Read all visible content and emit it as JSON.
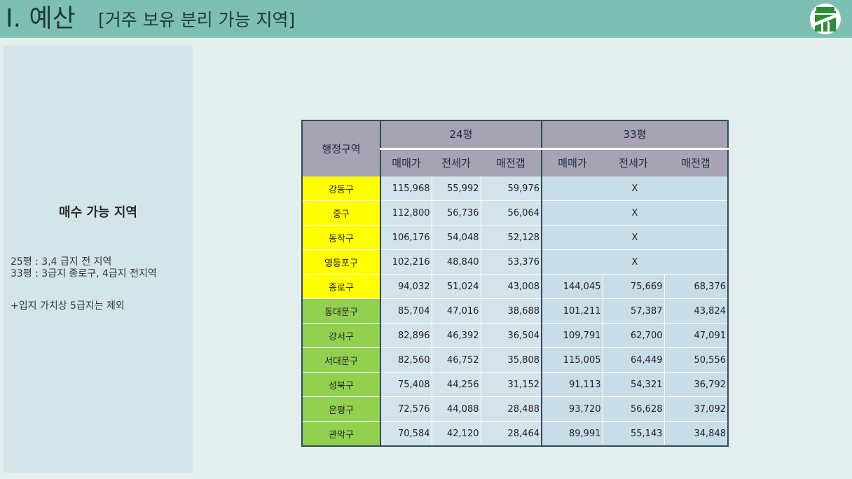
{
  "header": {
    "title_main": "I. 예산",
    "title_sub": "[거주 보유 분리 가능 지역]"
  },
  "side_panel": {
    "heading": "매수 가능 지역",
    "lines": [
      "25평 : 3,4 급지 전 지역",
      "33평 : 3급지 종로구, 4급지 전지역",
      "+입지 가치상 5급지는 제외"
    ]
  },
  "table": {
    "region_header": "행정구역",
    "group_headers": [
      "24평",
      "33평"
    ],
    "sub_headers": [
      "매매가",
      "전세가",
      "매전갭",
      "매매가",
      "전세가",
      "매전갭"
    ],
    "x_mark": "X",
    "rows": [
      {
        "region": "강동구",
        "color": "yellow",
        "v24": [
          "115,968",
          "55,992",
          "59,976"
        ],
        "v33": null
      },
      {
        "region": "중구",
        "color": "yellow",
        "v24": [
          "112,800",
          "56,736",
          "56,064"
        ],
        "v33": null
      },
      {
        "region": "동작구",
        "color": "yellow",
        "v24": [
          "106,176",
          "54,048",
          "52,128"
        ],
        "v33": null
      },
      {
        "region": "영등포구",
        "color": "yellow",
        "v24": [
          "102,216",
          "48,840",
          "53,376"
        ],
        "v33": null
      },
      {
        "region": "종로구",
        "color": "yellow",
        "v24": [
          "94,032",
          "51,024",
          "43,008"
        ],
        "v33": [
          "144,045",
          "75,669",
          "68,376"
        ]
      },
      {
        "region": "동대문구",
        "color": "green",
        "v24": [
          "85,704",
          "47,016",
          "38,688"
        ],
        "v33": [
          "101,211",
          "57,387",
          "43,824"
        ]
      },
      {
        "region": "강서구",
        "color": "green",
        "v24": [
          "82,896",
          "46,392",
          "36,504"
        ],
        "v33": [
          "109,791",
          "62,700",
          "47,091"
        ]
      },
      {
        "region": "서대문구",
        "color": "green",
        "v24": [
          "82,560",
          "46,752",
          "35,808"
        ],
        "v33": [
          "115,005",
          "64,449",
          "50,556"
        ]
      },
      {
        "region": "성북구",
        "color": "green",
        "v24": [
          "75,408",
          "44,256",
          "31,152"
        ],
        "v33": [
          "91,113",
          "54,321",
          "36,792"
        ]
      },
      {
        "region": "은평구",
        "color": "green",
        "v24": [
          "72,576",
          "44,088",
          "28,488"
        ],
        "v33": [
          "93,720",
          "56,628",
          "37,092"
        ]
      },
      {
        "region": "관악구",
        "color": "green",
        "v24": [
          "70,584",
          "42,120",
          "28,464"
        ],
        "v33": [
          "89,991",
          "55,143",
          "34,848"
        ]
      }
    ]
  },
  "colors": {
    "header_bg": "#7ebfb3",
    "page_bg": "#e3efee",
    "side_bg": "#d4e5ea",
    "yellow_region": "#ffff00",
    "green_region": "#92d050",
    "table_header": "#a6a3b3",
    "logo_green": "#2e8b3a"
  },
  "icons": {
    "logo": "gate-logo-icon"
  }
}
